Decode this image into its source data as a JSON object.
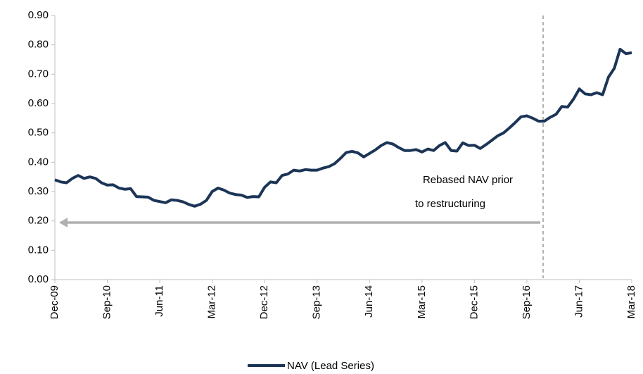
{
  "chart_data": {
    "type": "line",
    "categories": [
      "Dec-09",
      null,
      null,
      null,
      null,
      null,
      null,
      null,
      null,
      "Sep-10",
      null,
      null,
      null,
      null,
      null,
      null,
      null,
      null,
      "Jun-11",
      null,
      null,
      null,
      null,
      null,
      null,
      null,
      null,
      "Mar-12",
      null,
      null,
      null,
      null,
      null,
      null,
      null,
      null,
      "Dec-12",
      null,
      null,
      null,
      null,
      null,
      null,
      null,
      null,
      "Sep-13",
      null,
      null,
      null,
      null,
      null,
      null,
      null,
      null,
      "Jun-14",
      null,
      null,
      null,
      null,
      null,
      null,
      null,
      null,
      "Mar-15",
      null,
      null,
      null,
      null,
      null,
      null,
      null,
      null,
      "Dec-15",
      null,
      null,
      null,
      null,
      null,
      null,
      null,
      null,
      "Sep-16",
      null,
      null,
      null,
      null,
      null,
      null,
      null,
      null,
      "Jun-17",
      null,
      null,
      null,
      null,
      null,
      null,
      null,
      null,
      "Mar-18"
    ],
    "series": [
      {
        "name": "NAV (Lead Series)",
        "color": "#1c3557",
        "values": [
          0.34,
          0.333,
          0.33,
          0.345,
          0.355,
          0.345,
          0.35,
          0.345,
          0.33,
          0.322,
          0.323,
          0.312,
          0.308,
          0.31,
          0.283,
          0.282,
          0.281,
          0.27,
          0.266,
          0.262,
          0.272,
          0.27,
          0.265,
          0.256,
          0.25,
          0.257,
          0.27,
          0.3,
          0.312,
          0.305,
          0.295,
          0.29,
          0.288,
          0.28,
          0.283,
          0.282,
          0.315,
          0.333,
          0.33,
          0.355,
          0.36,
          0.373,
          0.37,
          0.375,
          0.373,
          0.373,
          0.38,
          0.385,
          0.395,
          0.413,
          0.433,
          0.437,
          0.432,
          0.418,
          0.43,
          0.442,
          0.457,
          0.467,
          0.462,
          0.45,
          0.44,
          0.44,
          0.443,
          0.435,
          0.445,
          0.44,
          0.457,
          0.467,
          0.44,
          0.438,
          0.466,
          0.457,
          0.458,
          0.447,
          0.46,
          0.475,
          0.49,
          0.5,
          0.517,
          0.535,
          0.555,
          0.558,
          0.55,
          0.54,
          0.54,
          0.553,
          0.563,
          0.59,
          0.588,
          0.615,
          0.65,
          0.633,
          0.63,
          0.637,
          0.63,
          0.69,
          0.72,
          0.785,
          0.77,
          0.773
        ]
      }
    ],
    "ylim": [
      0,
      0.9
    ],
    "yticks": [
      {
        "value": 0,
        "label": "0.00"
      },
      {
        "value": 0.1,
        "label": "0.10"
      },
      {
        "value": 0.2,
        "label": "0.20"
      },
      {
        "value": 0.3,
        "label": "0.30"
      },
      {
        "value": 0.4,
        "label": "0.40"
      },
      {
        "value": 0.5,
        "label": "0.50"
      },
      {
        "value": 0.6,
        "label": "0.60"
      },
      {
        "value": 0.7,
        "label": "0.70"
      },
      {
        "value": 0.8,
        "label": "0.80"
      },
      {
        "value": 0.9,
        "label": "0.90"
      }
    ],
    "annotation": [
      "Rebased NAV prior",
      "to restructuring"
    ],
    "grid": false
  }
}
